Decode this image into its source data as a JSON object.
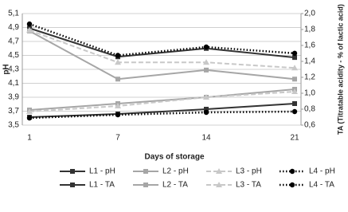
{
  "chart_data": {
    "type": "line",
    "categories": [
      "1",
      "7",
      "14",
      "21"
    ],
    "x_label": "Days of storage",
    "y_label": "pH",
    "y2_label": "TA (Titratable acidity - % of lactic acid)",
    "ylim": [
      3.5,
      5.1
    ],
    "yticks": [
      {
        "value": 3.5,
        "label": "3,5"
      },
      {
        "value": 3.7,
        "label": "3,7"
      },
      {
        "value": 3.9,
        "label": "3,9"
      },
      {
        "value": 4.1,
        "label": "4,1"
      },
      {
        "value": 4.3,
        "label": "4,3"
      },
      {
        "value": 4.5,
        "label": "4,5"
      },
      {
        "value": 4.7,
        "label": "4,7"
      },
      {
        "value": 4.9,
        "label": "4,9"
      },
      {
        "value": 5.1,
        "label": "5,1"
      }
    ],
    "y2lim": [
      0.6,
      2.0
    ],
    "y2ticks": [
      {
        "value": 0.6,
        "label": "0,6"
      },
      {
        "value": 0.8,
        "label": "0,8"
      },
      {
        "value": 1.0,
        "label": "1,0"
      },
      {
        "value": 1.2,
        "label": "1,2"
      },
      {
        "value": 1.4,
        "label": "1,4"
      },
      {
        "value": 1.6,
        "label": "1,6"
      },
      {
        "value": 1.8,
        "label": "1,8"
      },
      {
        "value": 2.0,
        "label": "2,0"
      }
    ],
    "grid": true,
    "series": [
      {
        "name": "L1 -  pH",
        "color": "#333333",
        "marker": "square",
        "dash": "solid",
        "values": [
          4.89,
          4.48,
          4.6,
          4.47
        ]
      },
      {
        "name": "L2 - pH",
        "color": "#a6a6a6",
        "marker": "square",
        "dash": "solid",
        "values": [
          4.85,
          4.16,
          4.29,
          4.16
        ]
      },
      {
        "name": "L3 -  pH",
        "color": "#c8c8c8",
        "marker": "triangle",
        "dash": "dashed",
        "values": [
          4.86,
          4.4,
          4.4,
          4.32
        ]
      },
      {
        "name": "L4 - pH",
        "color": "#000000",
        "marker": "circle",
        "dash": "dotted",
        "values": [
          4.95,
          4.5,
          4.62,
          4.53
        ]
      },
      {
        "name": "L1 - TA",
        "color": "#333333",
        "marker": "square",
        "dash": "solid",
        "axis": "y2",
        "values": [
          0.7,
          0.74,
          0.8,
          0.87
        ]
      },
      {
        "name": "L2 - TA",
        "color": "#a6a6a6",
        "marker": "square",
        "dash": "solid",
        "axis": "y2",
        "values": [
          0.79,
          0.87,
          0.95,
          1.05
        ]
      },
      {
        "name": "L3 - TA",
        "color": "#c8c8c8",
        "marker": "triangle",
        "dash": "dashed",
        "axis": "y2",
        "values": [
          0.77,
          0.84,
          0.95,
          1.02
        ]
      },
      {
        "name": "L4 - TA",
        "color": "#000000",
        "marker": "circle",
        "dash": "dotted",
        "axis": "y2",
        "values": [
          0.69,
          0.73,
          0.76,
          0.77
        ]
      }
    ]
  }
}
